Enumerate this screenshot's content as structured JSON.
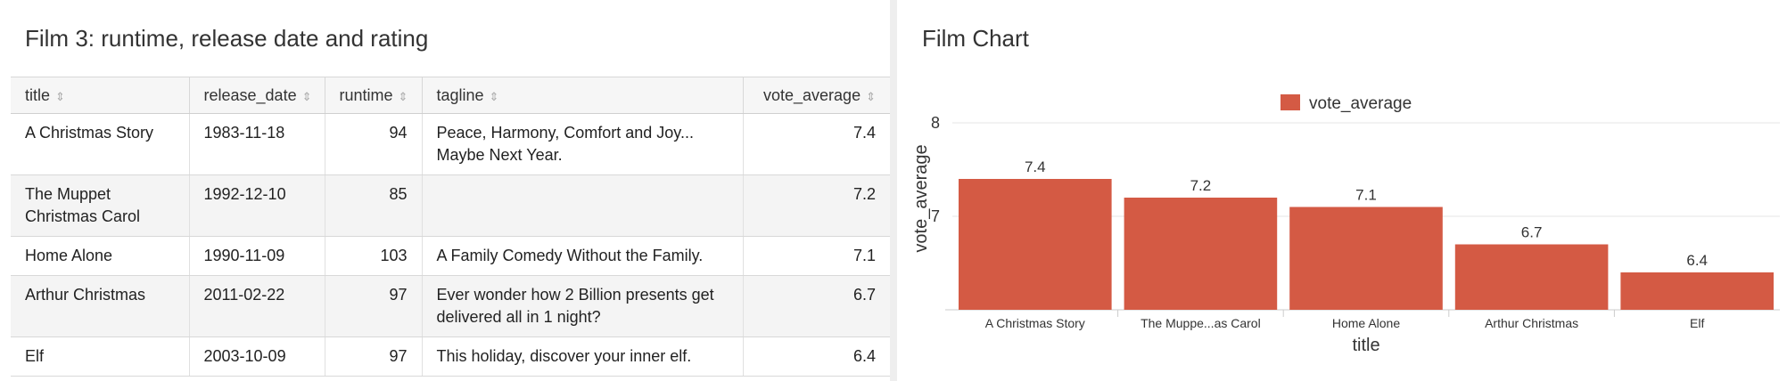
{
  "table_panel": {
    "title": "Film 3: runtime, release date and rating",
    "columns": [
      "title",
      "release_date",
      "runtime",
      "tagline",
      "vote_average"
    ],
    "rows": [
      {
        "title": "A Christmas Story",
        "release_date": "1983-11-18",
        "runtime": "94",
        "tagline": "Peace, Harmony, Comfort and Joy... Maybe Next Year.",
        "vote_average": "7.4"
      },
      {
        "title": "The Muppet Christmas Carol",
        "release_date": "1992-12-10",
        "runtime": "85",
        "tagline": "",
        "vote_average": "7.2"
      },
      {
        "title": "Home Alone",
        "release_date": "1990-11-09",
        "runtime": "103",
        "tagline": "A Family Comedy Without the Family.",
        "vote_average": "7.1"
      },
      {
        "title": "Arthur Christmas",
        "release_date": "2011-02-22",
        "runtime": "97",
        "tagline": "Ever wonder how 2 Billion presents get delivered all in 1 night?",
        "vote_average": "6.7"
      },
      {
        "title": "Elf",
        "release_date": "2003-10-09",
        "runtime": "97",
        "tagline": "This holiday, discover your inner elf.",
        "vote_average": "6.4"
      }
    ]
  },
  "chart_panel": {
    "title": "Film Chart"
  },
  "chart_data": {
    "type": "bar",
    "categories": [
      "A Christmas Story",
      "The Muppe...as Carol",
      "Home Alone",
      "Arthur Christmas",
      "Elf"
    ],
    "series": [
      {
        "name": "vote_average",
        "values": [
          7.4,
          7.2,
          7.1,
          6.7,
          6.4
        ],
        "color": "#d45a44"
      }
    ],
    "data_labels": [
      "7.4",
      "7.2",
      "7.1",
      "6.7",
      "6.4"
    ],
    "xlabel": "title",
    "ylabel": "vote_average",
    "ylim": [
      6,
      8
    ],
    "yticks": [
      "8",
      "7"
    ],
    "ytick_values": [
      8,
      7
    ],
    "legend_position": "top",
    "grid": true
  }
}
